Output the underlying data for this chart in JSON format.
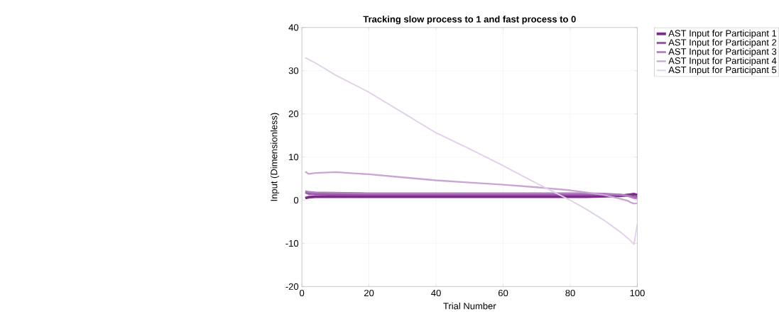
{
  "chart_data": {
    "type": "line",
    "title": "Tracking slow process to 1 and fast process to 0",
    "xlabel": "Trial Number",
    "ylabel": "Input (Dimensionless)",
    "x": [
      1,
      2,
      4,
      10,
      20,
      30,
      40,
      50,
      60,
      70,
      80,
      85,
      90,
      95,
      97,
      98,
      99,
      100
    ],
    "series": [
      {
        "name": "AST Input for Participant 1",
        "color": "#7b2a8a",
        "values": [
          0.5,
          0.7,
          0.8,
          0.8,
          0.8,
          0.8,
          0.8,
          0.8,
          0.8,
          0.8,
          0.8,
          0.8,
          0.9,
          1.0,
          1.2,
          1.3,
          1.4,
          1.2
        ]
      },
      {
        "name": "AST Input for Participant 2",
        "color": "#9a55a8",
        "values": [
          1.8,
          1.5,
          1.4,
          1.3,
          1.3,
          1.3,
          1.3,
          1.3,
          1.3,
          1.3,
          1.3,
          1.3,
          1.3,
          1.2,
          1.1,
          1.0,
          0.8,
          0.7
        ]
      },
      {
        "name": "AST Input for Participant 3",
        "color": "#b07cbc",
        "values": [
          2.1,
          1.9,
          1.8,
          1.7,
          1.6,
          1.6,
          1.6,
          1.6,
          1.6,
          1.6,
          1.6,
          1.6,
          1.5,
          1.3,
          1.0,
          0.8,
          0.5,
          0.4
        ]
      },
      {
        "name": "AST Input for Participant 4",
        "color": "#c8a5d2",
        "values": [
          6.6,
          6.1,
          6.3,
          6.5,
          6.0,
          5.3,
          4.6,
          4.1,
          3.6,
          3.0,
          2.3,
          1.8,
          1.2,
          0.3,
          -0.1,
          -0.5,
          -0.8,
          -0.7
        ]
      },
      {
        "name": "AST Input for Participant 5",
        "color": "#e2d0e8",
        "values": [
          33.0,
          32.6,
          31.8,
          29.0,
          25.0,
          20.3,
          15.6,
          11.9,
          8.0,
          3.9,
          0.0,
          -2.2,
          -4.6,
          -7.4,
          -8.7,
          -9.4,
          -10.2,
          -5.5
        ]
      }
    ],
    "xlim": [
      0,
      100
    ],
    "ylim": [
      -20,
      40
    ],
    "xticks": [
      0,
      20,
      40,
      60,
      80,
      100
    ],
    "yticks": [
      -20,
      -10,
      0,
      10,
      20,
      30,
      40
    ],
    "grid": true,
    "legend": "top right",
    "marker": "none",
    "line_style": "solid"
  }
}
